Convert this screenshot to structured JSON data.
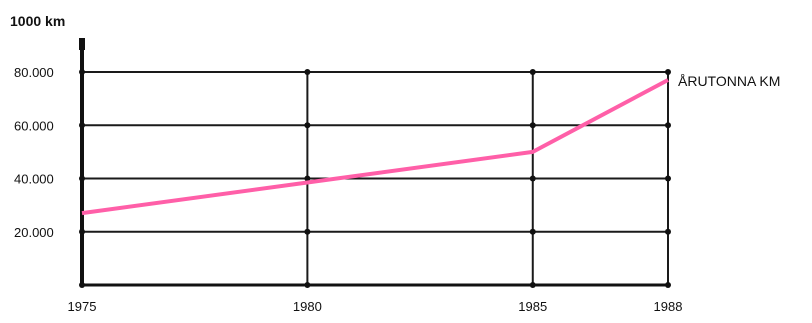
{
  "chart_data": {
    "type": "line",
    "ylabel": "1000 km",
    "x": [
      1975,
      1980,
      1985,
      1988
    ],
    "xticks": [
      "1975",
      "1980",
      "1985",
      "1988"
    ],
    "yticks": [
      "20.000",
      "40.000",
      "60.000",
      "80.000"
    ],
    "ytick_values": [
      20000,
      40000,
      60000,
      80000
    ],
    "ylim": [
      0,
      80000
    ],
    "xlim": [
      1975,
      1988
    ],
    "grid": true,
    "series": [
      {
        "name": "ÅRUTONNA KM",
        "x": [
          1975,
          1980,
          1985,
          1988
        ],
        "values": [
          27000,
          38500,
          50000,
          77000
        ],
        "color": "#ff5fa8"
      }
    ]
  }
}
